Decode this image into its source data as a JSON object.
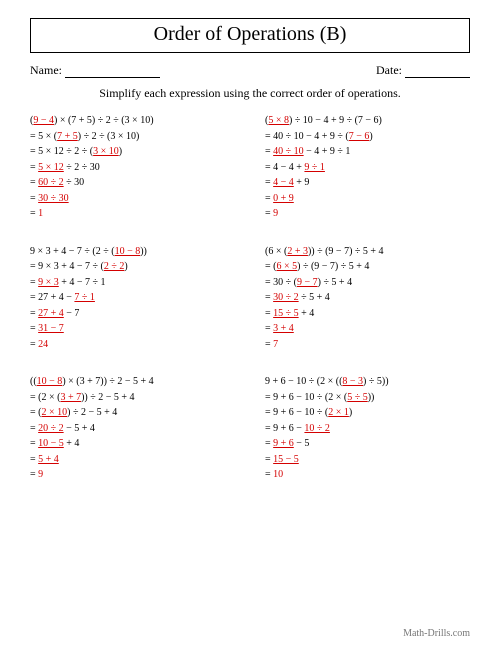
{
  "title": "Order of Operations (B)",
  "name_label": "Name:",
  "date_label": "Date:",
  "instructions": "Simplify each expression using the correct order of operations.",
  "footer": "Math-Drills.com",
  "colors": {
    "highlight": "#d40000",
    "text": "#000000",
    "footer": "#777777"
  },
  "problems": [
    {
      "steps": [
        [
          {
            "t": "("
          },
          {
            "t": "9 − 4",
            "hl": true
          },
          {
            "t": ") × (7 + 5) ÷ 2 ÷ (3 × 10)"
          }
        ],
        [
          {
            "t": "= 5 × ("
          },
          {
            "t": "7 + 5",
            "hl": true
          },
          {
            "t": ") ÷ 2 ÷ (3 × 10)"
          }
        ],
        [
          {
            "t": "= 5 × 12 ÷ 2 ÷ ("
          },
          {
            "t": "3 × 10",
            "hl": true
          },
          {
            "t": ")"
          }
        ],
        [
          {
            "t": "= "
          },
          {
            "t": "5 × 12",
            "hl": true
          },
          {
            "t": " ÷ 2 ÷ 30"
          }
        ],
        [
          {
            "t": "= "
          },
          {
            "t": "60 ÷ 2",
            "hl": true
          },
          {
            "t": " ÷ 30"
          }
        ],
        [
          {
            "t": "= "
          },
          {
            "t": "30 ÷ 30",
            "hl": true
          }
        ],
        [
          {
            "t": "= "
          },
          {
            "t": "1",
            "ans": true
          }
        ]
      ]
    },
    {
      "steps": [
        [
          {
            "t": "("
          },
          {
            "t": "5 × 8",
            "hl": true
          },
          {
            "t": ") ÷ 10 − 4 + 9 ÷ (7 − 6)"
          }
        ],
        [
          {
            "t": "= 40 ÷ 10 − 4 + 9 ÷ ("
          },
          {
            "t": "7 − 6",
            "hl": true
          },
          {
            "t": ")"
          }
        ],
        [
          {
            "t": "= "
          },
          {
            "t": "40 ÷ 10",
            "hl": true
          },
          {
            "t": " − 4 + 9 ÷ 1"
          }
        ],
        [
          {
            "t": "= 4 − 4 + "
          },
          {
            "t": "9 ÷ 1",
            "hl": true
          }
        ],
        [
          {
            "t": "= "
          },
          {
            "t": "4 − 4",
            "hl": true
          },
          {
            "t": " + 9"
          }
        ],
        [
          {
            "t": "= "
          },
          {
            "t": "0 + 9",
            "hl": true
          }
        ],
        [
          {
            "t": "= "
          },
          {
            "t": "9",
            "ans": true
          }
        ]
      ]
    },
    {
      "steps": [
        [
          {
            "t": "9 × 3 + 4 − 7 ÷ (2 ÷ ("
          },
          {
            "t": "10 − 8",
            "hl": true
          },
          {
            "t": "))"
          }
        ],
        [
          {
            "t": "= 9 × 3 + 4 − 7 ÷ ("
          },
          {
            "t": "2 ÷ 2",
            "hl": true
          },
          {
            "t": ")"
          }
        ],
        [
          {
            "t": "= "
          },
          {
            "t": "9 × 3",
            "hl": true
          },
          {
            "t": " + 4 − 7 ÷ 1"
          }
        ],
        [
          {
            "t": "= 27 + 4 − "
          },
          {
            "t": "7 ÷ 1",
            "hl": true
          }
        ],
        [
          {
            "t": "= "
          },
          {
            "t": "27 + 4",
            "hl": true
          },
          {
            "t": " − 7"
          }
        ],
        [
          {
            "t": "= "
          },
          {
            "t": "31 − 7",
            "hl": true
          }
        ],
        [
          {
            "t": "= "
          },
          {
            "t": "24",
            "ans": true
          }
        ]
      ]
    },
    {
      "steps": [
        [
          {
            "t": "(6 × ("
          },
          {
            "t": "2 + 3",
            "hl": true
          },
          {
            "t": ")) ÷ (9 − 7) ÷ 5 + 4"
          }
        ],
        [
          {
            "t": "= ("
          },
          {
            "t": "6 × 5",
            "hl": true
          },
          {
            "t": ") ÷ (9 − 7) ÷ 5 + 4"
          }
        ],
        [
          {
            "t": "= 30 ÷ ("
          },
          {
            "t": "9 − 7",
            "hl": true
          },
          {
            "t": ") ÷ 5 + 4"
          }
        ],
        [
          {
            "t": "= "
          },
          {
            "t": "30 ÷ 2",
            "hl": true
          },
          {
            "t": " ÷ 5 + 4"
          }
        ],
        [
          {
            "t": "= "
          },
          {
            "t": "15 ÷ 5",
            "hl": true
          },
          {
            "t": " + 4"
          }
        ],
        [
          {
            "t": "= "
          },
          {
            "t": "3 + 4",
            "hl": true
          }
        ],
        [
          {
            "t": "= "
          },
          {
            "t": "7",
            "ans": true
          }
        ]
      ]
    },
    {
      "steps": [
        [
          {
            "t": "(("
          },
          {
            "t": "10 − 8",
            "hl": true
          },
          {
            "t": ") × (3 + 7)) ÷ 2 − 5 + 4"
          }
        ],
        [
          {
            "t": "= (2 × ("
          },
          {
            "t": "3 + 7",
            "hl": true
          },
          {
            "t": ")) ÷ 2 − 5 + 4"
          }
        ],
        [
          {
            "t": "= ("
          },
          {
            "t": "2 × 10",
            "hl": true
          },
          {
            "t": ") ÷ 2 − 5 + 4"
          }
        ],
        [
          {
            "t": "= "
          },
          {
            "t": "20 ÷ 2",
            "hl": true
          },
          {
            "t": " − 5 + 4"
          }
        ],
        [
          {
            "t": "= "
          },
          {
            "t": "10 − 5",
            "hl": true
          },
          {
            "t": " + 4"
          }
        ],
        [
          {
            "t": "= "
          },
          {
            "t": "5 + 4",
            "hl": true
          }
        ],
        [
          {
            "t": "= "
          },
          {
            "t": "9",
            "ans": true
          }
        ]
      ]
    },
    {
      "steps": [
        [
          {
            "t": "9 + 6 − 10 ÷ (2 × (("
          },
          {
            "t": "8 − 3",
            "hl": true
          },
          {
            "t": ") ÷ 5))"
          }
        ],
        [
          {
            "t": "= 9 + 6 − 10 ÷ (2 × ("
          },
          {
            "t": "5 ÷ 5",
            "hl": true
          },
          {
            "t": "))"
          }
        ],
        [
          {
            "t": "= 9 + 6 − 10 ÷ ("
          },
          {
            "t": "2 × 1",
            "hl": true
          },
          {
            "t": ")"
          }
        ],
        [
          {
            "t": "= 9 + 6 − "
          },
          {
            "t": "10 ÷ 2",
            "hl": true
          }
        ],
        [
          {
            "t": "= "
          },
          {
            "t": "9 + 6",
            "hl": true
          },
          {
            "t": " − 5"
          }
        ],
        [
          {
            "t": "= "
          },
          {
            "t": "15 − 5",
            "hl": true
          }
        ],
        [
          {
            "t": "= "
          },
          {
            "t": "10",
            "ans": true
          }
        ]
      ]
    }
  ]
}
